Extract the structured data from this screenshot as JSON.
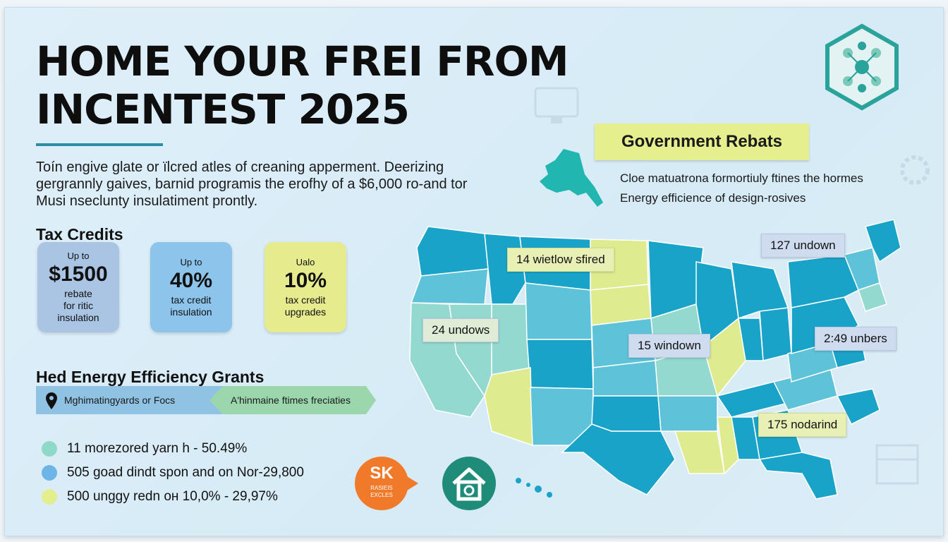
{
  "title_lines": [
    "HOME YOUR FREI FROM",
    "INCENTEST 2025"
  ],
  "intro_lines": [
    "Toín engive glate or ïlcred atles of creaning apperment. Deerizing",
    "gergrannly gaives, barnid programis the erofhy of a $6,000 ro-and tor",
    "Musi nseclunty insulatiment prontly."
  ],
  "tax_credits": {
    "heading": "Tax Credits",
    "cards": [
      {
        "pre": "Up to",
        "amount": "$1500",
        "desc1": "rebate",
        "desc2": "for ritic",
        "desc3": "insulation"
      },
      {
        "pre": "Up to",
        "amount": "40%",
        "desc1": "tax credit",
        "desc2": "insulation",
        "desc3": ""
      },
      {
        "pre": "Ualo",
        "amount": "10%",
        "desc1": "tax credit",
        "desc2": "upgrades",
        "desc3": ""
      }
    ]
  },
  "grants": {
    "heading": "Hed Energy Efficiency Grants",
    "ribbon_left": "Mghimatingyards or Focs",
    "ribbon_right": "A'hinmaine ftimes freciaties"
  },
  "legend": [
    {
      "label": "11 morezored yarn h - 50.49%",
      "color": "#8fd9c8"
    },
    {
      "label": "505 goad dindt spon and on Nor-29,800",
      "color": "#6db5e6"
    },
    {
      "label": "500 unggy redn он 10,0% - 29,97%",
      "color": "#e3ef8c"
    }
  ],
  "government": {
    "tab_label": "Government Rebats",
    "lines": [
      "Cloe matuatrona formortiuly ftines the hormes",
      "Energy efficience of design-rosives"
    ]
  },
  "map_callouts": [
    {
      "text": "14 wietlow sfired"
    },
    {
      "text": "127 undown"
    },
    {
      "text": "24 undows"
    },
    {
      "text": "15 windown"
    },
    {
      "text": "2:49 unbers"
    },
    {
      "text": "175 nodarind"
    }
  ],
  "badges": {
    "orange_main": "SK",
    "orange_sub1": "RASIEIS",
    "orange_sub2": "EXCLES"
  },
  "colors": {
    "accent": "#2b8fa3",
    "state_dark": "#1aa3c8",
    "state_mid": "#5ec3d8",
    "state_light": "#93d9cf",
    "state_yellow": "#dfeb8f"
  }
}
